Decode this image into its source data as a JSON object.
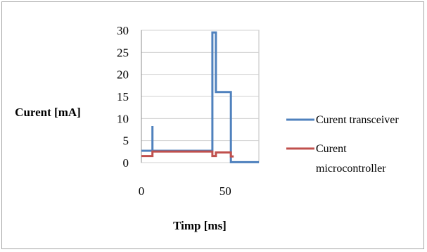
{
  "chart_data": {
    "type": "line",
    "title": "",
    "xlabel": "Timp [ms]",
    "ylabel": "Curent [mA]",
    "xlim": [
      0,
      70
    ],
    "ylim": [
      0,
      30
    ],
    "x_ticks": [
      "0",
      "50"
    ],
    "y_ticks": [
      "0",
      "5",
      "10",
      "15",
      "20",
      "25",
      "30"
    ],
    "grid": "horizontal",
    "legend": "right",
    "series": [
      {
        "name": "Curent transceiver",
        "color": "#4f81bd",
        "points": [
          [
            0,
            2.7
          ],
          [
            6.6,
            2.7
          ],
          [
            6.6,
            8.3
          ],
          [
            6.6,
            2.7
          ],
          [
            42.3,
            2.7
          ],
          [
            42.3,
            29.5
          ],
          [
            44.4,
            29.5
          ],
          [
            44.4,
            16.0
          ],
          [
            53.3,
            16.0
          ],
          [
            53.3,
            0.1
          ],
          [
            70,
            0.1
          ]
        ]
      },
      {
        "name": "Curent microcontroller",
        "name_lines": [
          "Curent",
          "microcontroller"
        ],
        "color": "#c0504d",
        "points": [
          [
            0,
            1.5
          ],
          [
            6.6,
            1.5
          ],
          [
            6.6,
            2.5
          ],
          [
            42.3,
            2.5
          ],
          [
            42.3,
            1.5
          ],
          [
            44.4,
            1.5
          ],
          [
            44.4,
            2.3
          ],
          [
            53.3,
            2.3
          ],
          [
            53.3,
            1.4
          ],
          [
            55,
            1.4
          ]
        ]
      }
    ]
  }
}
